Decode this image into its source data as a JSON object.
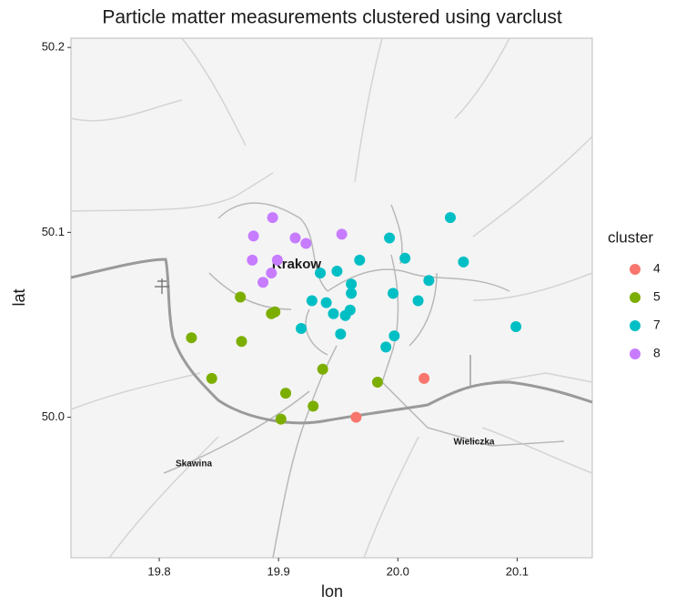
{
  "chart_data": {
    "type": "scatter",
    "title": "Particle matter measurements clustered using varclust",
    "x_label": "lon",
    "y_label": "lat",
    "legend_title": "cluster",
    "legend_position": "right",
    "xlim": [
      19.726,
      20.163
    ],
    "ylim": [
      49.924,
      50.205
    ],
    "xticks": [
      19.8,
      19.9,
      {
        "value": 20,
        "label": "20.0"
      },
      20.1
    ],
    "yticks": [
      {
        "value": 50,
        "label": "50.0"
      },
      50.1,
      50.2
    ],
    "map_labels": [
      "Krakow",
      "Skawina",
      "Wieliczka"
    ],
    "series": [
      {
        "name": "4",
        "color": "#F8766D",
        "x": [
          20.022,
          19.965
        ],
        "values": [
          50.021,
          50.0
        ]
      },
      {
        "name": "5",
        "color": "#7CAE00",
        "x": [
          19.868,
          19.827,
          19.869,
          19.894,
          19.897,
          19.844,
          19.906,
          19.902,
          19.929,
          19.937,
          19.983
        ],
        "values": [
          50.065,
          50.043,
          50.041,
          50.056,
          50.057,
          50.021,
          50.013,
          49.999,
          50.006,
          50.026,
          50.019
        ]
      },
      {
        "name": "7",
        "color": "#00BFC4",
        "x": [
          20.044,
          19.993,
          20.055,
          20.006,
          19.968,
          19.949,
          19.935,
          20.026,
          19.961,
          19.961,
          19.996,
          20.017,
          19.928,
          19.94,
          19.96,
          19.946,
          19.956,
          19.919,
          19.952,
          19.997,
          19.99,
          20.099
        ],
        "values": [
          50.108,
          50.097,
          50.084,
          50.086,
          50.085,
          50.079,
          50.078,
          50.074,
          50.072,
          50.067,
          50.067,
          50.063,
          50.063,
          50.062,
          50.058,
          50.056,
          50.055,
          50.048,
          50.045,
          50.044,
          50.038,
          50.049
        ]
      },
      {
        "name": "8",
        "color": "#C77CFF",
        "x": [
          19.895,
          19.953,
          19.879,
          19.914,
          19.923,
          19.878,
          19.899,
          19.894,
          19.887
        ],
        "values": [
          50.108,
          50.099,
          50.098,
          50.097,
          50.094,
          50.085,
          50.085,
          50.078,
          50.073
        ]
      }
    ]
  }
}
